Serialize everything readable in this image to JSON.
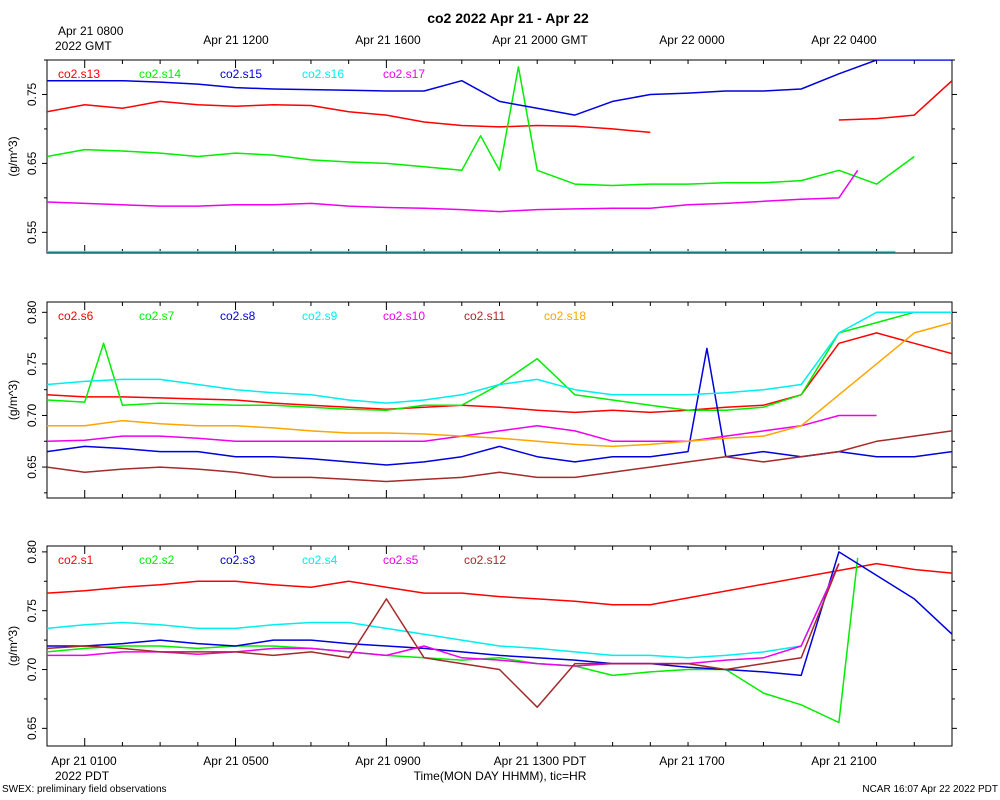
{
  "title": "co2 2022 Apr 21 - Apr 22",
  "top_axis": {
    "first_label_line1": "Apr 21 0800",
    "first_label_line2": "2022 GMT",
    "labels": [
      "Apr 21 1200",
      "Apr 21 1600",
      "Apr 21 2000 GMT",
      "Apr 22 0000",
      "Apr 22 0400"
    ]
  },
  "bottom_axis": {
    "labels": [
      "Apr 21 0100",
      "Apr 21 0500",
      "Apr 21 0900",
      "Apr 21 1300 PDT",
      "Apr 21 1700",
      "Apr 21 2100"
    ],
    "first_label_line2": "2022 PDT",
    "title": "Time(MON DAY HHMM), tic=HR"
  },
  "footer_left": "SWEX: preliminary field observations",
  "footer_right": "NCAR 16:07 Apr 22 2022 PDT",
  "chart_data": [
    {
      "type": "line",
      "ylabel": "(g/m^3)",
      "ylim": [
        0.52,
        0.8
      ],
      "yticks": [
        "0.55",
        "0.65",
        "0.75"
      ],
      "ytick_values": [
        0.55,
        0.65,
        0.75
      ],
      "xlim_hours_pdt": [
        0,
        24
      ],
      "series": [
        {
          "name": "co2.s13",
          "color": "#ff0000",
          "x": [
            0,
            1,
            2,
            3,
            4,
            5,
            6,
            7,
            8,
            9,
            10,
            11,
            12,
            13,
            14,
            15,
            16,
            17,
            18,
            19,
            20,
            21,
            22,
            23,
            24
          ],
          "values": [
            0.725,
            0.735,
            0.73,
            0.74,
            0.735,
            0.733,
            0.735,
            0.734,
            0.725,
            0.72,
            0.71,
            0.705,
            0.703,
            0.705,
            0.704,
            0.7,
            0.695,
            null,
            null,
            null,
            null,
            0.713,
            0.715,
            0.72,
            0.77
          ]
        },
        {
          "name": "co2.s14",
          "color": "#00ee00",
          "x": [
            0,
            1,
            2,
            3,
            4,
            5,
            6,
            7,
            8,
            9,
            10,
            11,
            11.5,
            12,
            12.5,
            13,
            14,
            15,
            16,
            17,
            18,
            19,
            20,
            21,
            22,
            23
          ],
          "values": [
            0.66,
            0.67,
            0.668,
            0.665,
            0.66,
            0.665,
            0.662,
            0.655,
            0.652,
            0.65,
            0.645,
            0.64,
            0.69,
            0.64,
            0.79,
            0.64,
            0.62,
            0.618,
            0.62,
            0.62,
            0.622,
            0.622,
            0.625,
            0.64,
            0.62,
            0.66
          ]
        },
        {
          "name": "co2.s15",
          "color": "#0000dd",
          "x": [
            0,
            1,
            2,
            3,
            4,
            5,
            6,
            7,
            8,
            9,
            10,
            11,
            12,
            13,
            14,
            15,
            16,
            17,
            18,
            19,
            20,
            21,
            22,
            23,
            24
          ],
          "values": [
            0.77,
            0.77,
            0.77,
            0.768,
            0.765,
            0.76,
            0.758,
            0.757,
            0.756,
            0.755,
            0.755,
            0.77,
            0.74,
            0.73,
            0.72,
            0.74,
            0.75,
            0.752,
            0.755,
            0.755,
            0.758,
            0.78,
            0.8,
            0.8,
            0.8
          ]
        },
        {
          "name": "co2.s16",
          "color": "#00eeee",
          "x": [
            0,
            22.5
          ],
          "values": [
            0.522,
            0.522
          ]
        },
        {
          "name": "co2.s17",
          "color": "#ee00ee",
          "x": [
            0,
            1,
            2,
            3,
            4,
            5,
            6,
            7,
            8,
            9,
            10,
            11,
            12,
            13,
            14,
            15,
            16,
            17,
            18,
            19,
            20,
            21,
            21.5
          ],
          "values": [
            0.594,
            0.592,
            0.59,
            0.588,
            0.588,
            0.59,
            0.59,
            0.592,
            0.588,
            0.586,
            0.585,
            0.583,
            0.58,
            0.583,
            0.584,
            0.585,
            0.585,
            0.59,
            0.592,
            0.595,
            0.598,
            0.6,
            0.64
          ]
        }
      ]
    },
    {
      "type": "line",
      "ylabel": "(g/m^3)",
      "ylim": [
        0.62,
        0.81
      ],
      "yticks": [
        "0.65",
        "0.70",
        "0.75",
        "0.80"
      ],
      "ytick_values": [
        0.65,
        0.7,
        0.75,
        0.8
      ],
      "xlim_hours_pdt": [
        0,
        24
      ],
      "series": [
        {
          "name": "co2.s6",
          "color": "#ff0000",
          "x": [
            0,
            1,
            2,
            3,
            4,
            5,
            6,
            7,
            8,
            9,
            10,
            11,
            12,
            13,
            14,
            15,
            16,
            17,
            18,
            19,
            20,
            21,
            22,
            23,
            24
          ],
          "values": [
            0.72,
            0.718,
            0.718,
            0.717,
            0.716,
            0.715,
            0.712,
            0.71,
            0.708,
            0.706,
            0.708,
            0.71,
            0.708,
            0.705,
            0.703,
            0.705,
            0.703,
            0.705,
            0.708,
            0.71,
            0.72,
            0.77,
            0.78,
            0.77,
            0.76
          ]
        },
        {
          "name": "co2.s7",
          "color": "#00ee00",
          "x": [
            0,
            1,
            1.5,
            2,
            3,
            4,
            5,
            6,
            7,
            8,
            9,
            10,
            11,
            12,
            13,
            14,
            15,
            16,
            17,
            18,
            19,
            20,
            21,
            22,
            23,
            24
          ],
          "values": [
            0.715,
            0.713,
            0.77,
            0.71,
            0.712,
            0.711,
            0.71,
            0.71,
            0.708,
            0.706,
            0.705,
            0.71,
            0.71,
            0.73,
            0.755,
            0.72,
            0.715,
            0.71,
            0.705,
            0.705,
            0.708,
            0.72,
            0.78,
            0.79,
            0.8,
            0.8
          ]
        },
        {
          "name": "co2.s8",
          "color": "#0000dd",
          "x": [
            0,
            1,
            2,
            3,
            4,
            5,
            6,
            7,
            8,
            9,
            10,
            11,
            12,
            13,
            14,
            15,
            16,
            17,
            17.5,
            18,
            19,
            20,
            21,
            22,
            23,
            24
          ],
          "values": [
            0.665,
            0.67,
            0.668,
            0.665,
            0.665,
            0.66,
            0.66,
            0.658,
            0.655,
            0.652,
            0.655,
            0.66,
            0.67,
            0.66,
            0.655,
            0.66,
            0.66,
            0.665,
            0.765,
            0.66,
            0.665,
            0.66,
            0.665,
            0.66,
            0.66,
            0.665
          ]
        },
        {
          "name": "co2.s9",
          "color": "#00eeee",
          "x": [
            0,
            1,
            2,
            3,
            4,
            5,
            6,
            7,
            8,
            9,
            10,
            11,
            12,
            13,
            14,
            15,
            16,
            17,
            18,
            19,
            20,
            21,
            22,
            23,
            24
          ],
          "values": [
            0.73,
            0.733,
            0.735,
            0.735,
            0.73,
            0.725,
            0.722,
            0.72,
            0.715,
            0.712,
            0.715,
            0.72,
            0.73,
            0.735,
            0.725,
            0.72,
            0.72,
            0.72,
            0.722,
            0.725,
            0.73,
            0.78,
            0.8,
            0.8,
            0.8
          ]
        },
        {
          "name": "co2.s10",
          "color": "#ee00ee",
          "x": [
            0,
            1,
            2,
            3,
            4,
            5,
            6,
            7,
            8,
            9,
            10,
            11,
            12,
            13,
            14,
            15,
            16,
            17,
            18,
            19,
            20,
            21,
            22
          ],
          "values": [
            0.675,
            0.676,
            0.68,
            0.68,
            0.678,
            0.675,
            0.675,
            0.675,
            0.675,
            0.675,
            0.675,
            0.68,
            0.685,
            0.69,
            0.685,
            0.675,
            0.675,
            0.675,
            0.68,
            0.685,
            0.69,
            0.7,
            0.7
          ]
        },
        {
          "name": "co2.s11",
          "color": "#a52a2a",
          "x": [
            0,
            1,
            2,
            3,
            4,
            5,
            6,
            7,
            8,
            9,
            10,
            11,
            12,
            13,
            14,
            15,
            16,
            17,
            18,
            19,
            20,
            21,
            22,
            23,
            24
          ],
          "values": [
            0.65,
            0.645,
            0.648,
            0.65,
            0.648,
            0.645,
            0.64,
            0.64,
            0.638,
            0.636,
            0.638,
            0.64,
            0.645,
            0.64,
            0.64,
            0.645,
            0.65,
            0.655,
            0.66,
            0.655,
            0.66,
            0.665,
            0.675,
            0.68,
            0.685
          ]
        },
        {
          "name": "co2.s18",
          "color": "#ffa500",
          "x": [
            0,
            1,
            2,
            3,
            4,
            5,
            6,
            7,
            8,
            9,
            10,
            11,
            12,
            13,
            14,
            15,
            16,
            17,
            18,
            19,
            20,
            21,
            22,
            23,
            24
          ],
          "values": [
            0.69,
            0.69,
            0.695,
            0.692,
            0.69,
            0.69,
            0.688,
            0.685,
            0.683,
            0.683,
            0.682,
            0.68,
            0.678,
            0.675,
            0.672,
            0.67,
            0.672,
            0.675,
            0.678,
            0.68,
            0.69,
            0.72,
            0.75,
            0.78,
            0.79
          ]
        }
      ]
    },
    {
      "type": "line",
      "ylabel": "(g/m^3)",
      "ylim": [
        0.635,
        0.805
      ],
      "yticks": [
        "0.65",
        "0.70",
        "0.75",
        "0.80"
      ],
      "ytick_values": [
        0.65,
        0.7,
        0.75,
        0.8
      ],
      "xlim_hours_pdt": [
        0,
        24
      ],
      "series": [
        {
          "name": "co2.s1",
          "color": "#ff0000",
          "x": [
            0,
            1,
            2,
            3,
            4,
            5,
            6,
            7,
            8,
            9,
            10,
            11,
            12,
            13,
            14,
            15,
            16,
            22,
            23,
            24
          ],
          "values": [
            0.765,
            0.767,
            0.77,
            0.772,
            0.775,
            0.775,
            0.772,
            0.77,
            0.775,
            0.77,
            0.765,
            0.765,
            0.762,
            0.76,
            0.758,
            0.755,
            0.755,
            0.79,
            0.785,
            0.782
          ]
        },
        {
          "name": "co2.s2",
          "color": "#00ee00",
          "x": [
            0,
            1,
            2,
            3,
            4,
            5,
            6,
            7,
            8,
            9,
            10,
            11,
            12,
            13,
            14,
            15,
            16,
            17,
            18,
            19,
            20,
            21,
            21.5
          ],
          "values": [
            0.715,
            0.718,
            0.72,
            0.72,
            0.718,
            0.72,
            0.72,
            0.718,
            0.715,
            0.712,
            0.71,
            0.708,
            0.71,
            0.705,
            0.703,
            0.695,
            0.698,
            0.7,
            0.7,
            0.68,
            0.67,
            0.655,
            0.795
          ]
        },
        {
          "name": "co2.s3",
          "color": "#0000dd",
          "x": [
            0,
            1,
            2,
            3,
            4,
            5,
            6,
            7,
            8,
            9,
            10,
            11,
            12,
            13,
            14,
            15,
            16,
            17,
            18,
            19,
            20,
            21,
            22,
            23,
            24
          ],
          "values": [
            0.72,
            0.72,
            0.722,
            0.725,
            0.722,
            0.72,
            0.725,
            0.725,
            0.722,
            0.72,
            0.718,
            0.715,
            0.712,
            0.71,
            0.708,
            0.705,
            0.705,
            0.702,
            0.7,
            0.698,
            0.695,
            0.8,
            0.78,
            0.76,
            0.73
          ]
        },
        {
          "name": "co2.s4",
          "color": "#00eeee",
          "x": [
            0,
            1,
            2,
            3,
            4,
            5,
            6,
            7,
            8,
            9,
            10,
            11,
            12,
            13,
            14,
            15,
            16,
            17,
            18,
            19,
            20,
            21
          ],
          "values": [
            0.735,
            0.738,
            0.74,
            0.738,
            0.735,
            0.735,
            0.738,
            0.74,
            0.74,
            0.735,
            0.73,
            0.725,
            0.72,
            0.718,
            0.715,
            0.712,
            0.712,
            0.71,
            0.712,
            0.715,
            0.72,
            0.79
          ]
        },
        {
          "name": "co2.s5",
          "color": "#ee00ee",
          "x": [
            0,
            1,
            2,
            3,
            4,
            5,
            6,
            7,
            8,
            9,
            10,
            11,
            12,
            13,
            14,
            15,
            16,
            17,
            18,
            19,
            20,
            21
          ],
          "values": [
            0.712,
            0.712,
            0.715,
            0.715,
            0.713,
            0.715,
            0.718,
            0.718,
            0.715,
            0.712,
            0.72,
            0.71,
            0.708,
            0.705,
            0.703,
            0.705,
            0.705,
            0.705,
            0.708,
            0.71,
            0.72,
            0.79
          ]
        },
        {
          "name": "co2.s12",
          "color": "#a52a2a",
          "x": [
            0,
            1,
            2,
            3,
            4,
            5,
            6,
            7,
            8,
            9,
            10,
            11,
            12,
            13,
            14,
            15,
            16,
            17,
            18,
            19,
            20,
            21
          ],
          "values": [
            0.718,
            0.72,
            0.718,
            0.715,
            0.715,
            0.715,
            0.712,
            0.715,
            0.71,
            0.76,
            0.71,
            0.705,
            0.7,
            0.668,
            0.705,
            0.705,
            0.705,
            0.705,
            0.7,
            0.705,
            0.71,
            0.79
          ]
        }
      ]
    }
  ]
}
